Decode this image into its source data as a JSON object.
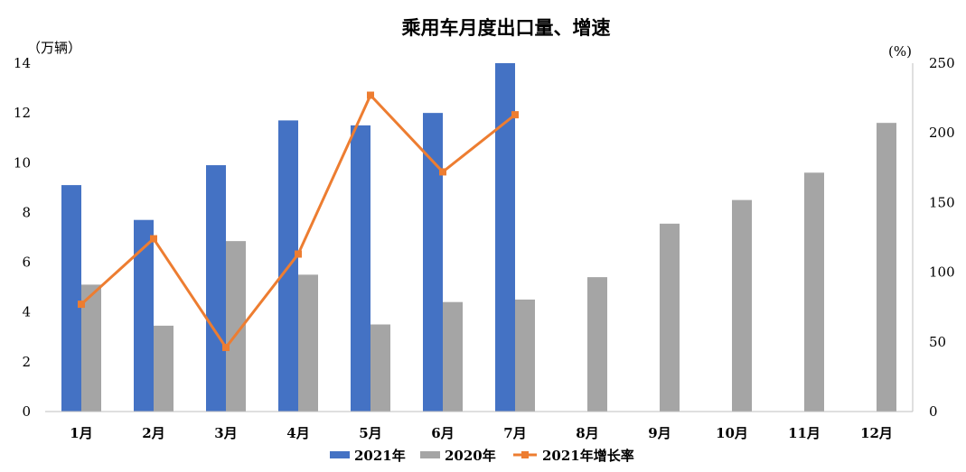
{
  "chart_data": {
    "type": "bar",
    "title": "乘用车月度出口量、增速",
    "ylabel_left": "（万辆）",
    "ylabel_right": "(%)",
    "categories": [
      "1月",
      "2月",
      "3月",
      "4月",
      "5月",
      "6月",
      "7月",
      "8月",
      "9月",
      "10月",
      "11月",
      "12月"
    ],
    "ylim_left": [
      0,
      14
    ],
    "yticks_left": [
      "0",
      "2",
      "4",
      "6",
      "8",
      "10",
      "12",
      "14"
    ],
    "ylim_right": [
      0,
      250
    ],
    "yticks_right": [
      "0",
      "50",
      "100",
      "150",
      "200",
      "250"
    ],
    "series": [
      {
        "name": "2021年",
        "type": "bar",
        "axis": "left",
        "color": "#4472C4",
        "values": [
          9.1,
          7.7,
          9.9,
          11.7,
          11.5,
          12.0,
          14.0,
          null,
          null,
          null,
          null,
          null
        ]
      },
      {
        "name": "2020年",
        "type": "bar",
        "axis": "left",
        "color": "#A5A5A5",
        "values": [
          5.1,
          3.45,
          6.85,
          5.5,
          3.5,
          4.4,
          4.5,
          5.4,
          7.55,
          8.5,
          9.6,
          11.6
        ]
      },
      {
        "name": "2021年增长率",
        "type": "line",
        "axis": "right",
        "color": "#ED7D31",
        "values": [
          77,
          124,
          46,
          113,
          227,
          172,
          213,
          null,
          null,
          null,
          null,
          null
        ]
      }
    ],
    "legend_position": "bottom",
    "grid": false
  }
}
